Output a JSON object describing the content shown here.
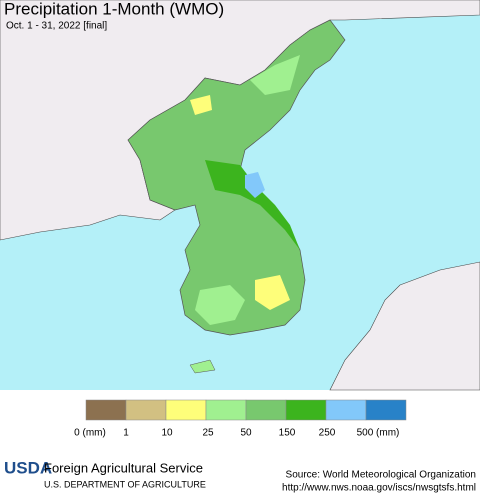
{
  "header": {
    "title": "Precipitation 1-Month (WMO)",
    "subtitle": "Oct. 1 - 31, 2022 [final]"
  },
  "legend": {
    "colors": [
      "#8c7150",
      "#d2c082",
      "#fefe7a",
      "#a0f090",
      "#78c86e",
      "#3cb41e",
      "#82c8fa",
      "#2882c8"
    ],
    "labels": [
      "0 (mm)",
      "1",
      "10",
      "25",
      "50",
      "150",
      "250",
      "500 (mm)"
    ]
  },
  "footer": {
    "logo": "USDA",
    "agency": "Foreign Agricultural Service",
    "department": "U.S. DEPARTMENT OF AGRICULTURE",
    "source": "Source: World Meteorological Organization",
    "url": "http://www.nws.noaa.gov/iscs/nwsgtsfs.html"
  }
}
